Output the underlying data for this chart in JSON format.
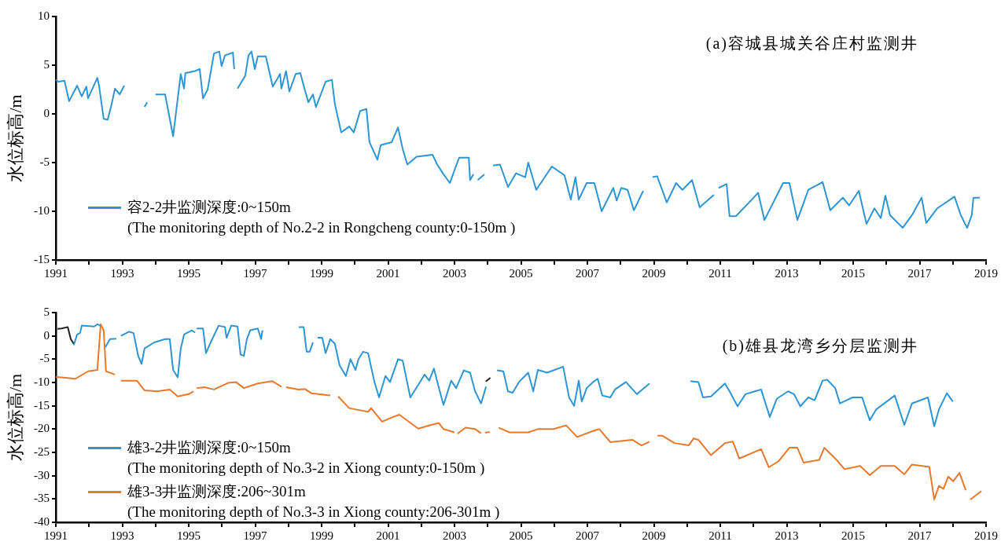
{
  "chart_data": [
    {
      "type": "line",
      "title": "(a)容城县城关谷庄村监测井",
      "ylabel": "水位标高/m",
      "xlim": [
        1991,
        2019
      ],
      "xticks": [
        1991,
        {
          "value": 1992,
          "label": null
        },
        1993,
        {
          "value": 1994,
          "label": null
        },
        1995,
        {
          "value": 1996,
          "label": null
        },
        1997,
        {
          "value": 1998,
          "label": null
        },
        1999,
        {
          "value": 2000,
          "label": null
        },
        2001,
        {
          "value": 2002,
          "label": null
        },
        2003,
        {
          "value": 2004,
          "label": null
        },
        2005,
        {
          "value": 2006,
          "label": null
        },
        2007,
        {
          "value": 2008,
          "label": null
        },
        2009,
        {
          "value": 2010,
          "label": null
        },
        2011,
        {
          "value": 2012,
          "label": null
        },
        2013,
        {
          "value": 2014,
          "label": null
        },
        2015,
        {
          "value": 2016,
          "label": null
        },
        2017,
        {
          "value": 2018,
          "label": null
        },
        2019
      ],
      "ylim": [
        -15,
        10
      ],
      "yticks": [
        -15,
        -10,
        -5,
        0,
        5,
        10
      ],
      "grid": false,
      "legend": "bottom left",
      "marker": "none",
      "series": [
        {
          "name": "容2-2井监测深度:0~150m\n(The monitoring depth of No.2-2 in Rongcheng county:0-150m )",
          "color": "#2e95d3",
          "x": [
            1991.0,
            1991.07,
            1991.26,
            1991.4,
            1991.64,
            1991.78,
            1991.92,
            1991.97,
            1992.25,
            1992.3,
            1992.44,
            1992.56,
            1992.68,
            1992.78,
            1992.92,
            1993.06,
            1993.4,
            1993.67,
            1993.75,
            1993.9,
            1994.0,
            1994.29,
            1994.53,
            1994.76,
            1994.86,
            1994.9,
            1995.19,
            1995.33,
            1995.43,
            1995.57,
            1995.76,
            1995.92,
            1995.99,
            1996.09,
            1996.33,
            1996.37,
            1996.42,
            1996.47,
            1996.7,
            1996.8,
            1996.89,
            1996.99,
            1997.08,
            1997.32,
            1997.53,
            1997.75,
            1997.79,
            1997.93,
            1998.03,
            1998.22,
            1998.36,
            1998.46,
            1998.6,
            1998.74,
            1998.83,
            1999.12,
            1999.31,
            1999.4,
            1999.59,
            1999.83,
            1999.97,
            2000.16,
            2000.35,
            2000.44,
            2000.68,
            2000.78,
            2001.11,
            2001.3,
            2001.44,
            2001.58,
            2001.86,
            2002.34,
            2002.48,
            2002.67,
            2002.86,
            2003.05,
            2003.14,
            2003.43,
            2003.47,
            2003.57,
            2003.63,
            2003.7,
            2003.9,
            2004.03,
            2004.16,
            2004.37,
            2004.61,
            2004.85,
            2005.13,
            2005.22,
            2005.46,
            2005.93,
            2006.31,
            2006.5,
            2006.64,
            2006.74,
            2006.98,
            2007.21,
            2007.43,
            2007.78,
            2007.88,
            2008.02,
            2008.21,
            2008.4,
            2008.68,
            2008.82,
            2008.96,
            2009.1,
            2009.39,
            2009.67,
            2009.86,
            2010.15,
            2010.38,
            2010.81,
            2010.88,
            2010.95,
            2011.19,
            2011.28,
            2011.47,
            2011.95,
            2012.14,
            2012.33,
            2012.89,
            2013.08,
            2013.32,
            2013.65,
            2014.08,
            2014.31,
            2014.69,
            2014.88,
            2015.17,
            2015.4,
            2015.64,
            2015.83,
            2015.97,
            2016.11,
            2016.49,
            2016.77,
            2017.06,
            2017.2,
            2017.53,
            2018.05,
            2018.24,
            2018.43,
            2018.57,
            2018.62,
            2018.81
          ],
          "values": [
            3.5,
            3.3,
            3.4,
            1.3,
            2.9,
            1.8,
            2.8,
            1.6,
            3.7,
            2.9,
            -0.5,
            -0.6,
            1.0,
            2.6,
            2.0,
            2.9,
            null,
            0.7,
            1.2,
            null,
            2.0,
            2.0,
            -2.3,
            4.1,
            2.6,
            4.2,
            4.4,
            4.6,
            1.6,
            2.5,
            6.2,
            6.4,
            4.9,
            6.0,
            6.3,
            4.6,
            null,
            2.6,
            3.9,
            6.0,
            6.4,
            4.6,
            5.9,
            5.9,
            2.8,
            4.1,
            2.6,
            4.4,
            2.3,
            4.1,
            4.2,
            2.9,
            1.2,
            2.0,
            0.7,
            3.3,
            3.5,
            1.0,
            -1.9,
            -1.3,
            -1.9,
            0.3,
            0.5,
            -2.9,
            -4.7,
            -3.2,
            -2.9,
            -1.4,
            -3.6,
            -5.2,
            -4.4,
            -4.2,
            -5.2,
            -6.2,
            -7.1,
            -5.3,
            -4.5,
            -4.5,
            -6.8,
            -6.2,
            null,
            -6.8,
            -6.2,
            null,
            -5.3,
            -5.2,
            -7.5,
            -6.1,
            -6.5,
            -5.0,
            -7.8,
            -5.4,
            -6.3,
            -8.8,
            -6.5,
            -8.8,
            -7.1,
            -7.1,
            -10.0,
            -7.6,
            -8.9,
            -7.6,
            -7.8,
            -9.9,
            -7.9,
            null,
            -6.5,
            -6.4,
            -9.1,
            -7.1,
            -7.8,
            -6.8,
            -9.6,
            -8.3,
            null,
            -7.6,
            -7.2,
            -10.5,
            -10.5,
            -8.8,
            -8.1,
            -10.9,
            -7.1,
            -7.1,
            -10.9,
            -7.8,
            -7.0,
            -9.9,
            -8.6,
            -9.4,
            -7.9,
            -11.3,
            -9.7,
            -10.7,
            -8.4,
            -10.4,
            -11.7,
            -10.4,
            -8.6,
            -11.2,
            -9.7,
            -8.5,
            -10.4,
            -11.7,
            -10.4,
            -8.6,
            -8.6
          ]
        }
      ]
    },
    {
      "type": "line",
      "title": "(b)雄县龙湾乡分层监测井",
      "ylabel": "水位标高/m",
      "xlim": [
        1991,
        2019
      ],
      "xticks": [
        1991,
        {
          "value": 1992,
          "label": null
        },
        1993,
        {
          "value": 1994,
          "label": null
        },
        1995,
        {
          "value": 1996,
          "label": null
        },
        1997,
        {
          "value": 1998,
          "label": null
        },
        1999,
        {
          "value": 2000,
          "label": null
        },
        2001,
        {
          "value": 2002,
          "label": null
        },
        2003,
        {
          "value": 2004,
          "label": null
        },
        2005,
        {
          "value": 2006,
          "label": null
        },
        2007,
        {
          "value": 2008,
          "label": null
        },
        2009,
        {
          "value": 2010,
          "label": null
        },
        2011,
        {
          "value": 2012,
          "label": null
        },
        2013,
        {
          "value": 2014,
          "label": null
        },
        2015,
        {
          "value": 2016,
          "label": null
        },
        2017,
        {
          "value": 2018,
          "label": null
        },
        2019
      ],
      "ylim": [
        -40,
        5
      ],
      "yticks": [
        -40,
        -35,
        -30,
        -25,
        -20,
        -15,
        -10,
        -5,
        0,
        5
      ],
      "grid": false,
      "legend": "bottom left",
      "marker": "none",
      "series": [
        {
          "name": "雄3-2井监测深度:0~150m\n(The monitoring depth of No.3-2 in Xiong county:0-150m )",
          "color": "#2e95d3",
          "x": [
            1991.54,
            1991.64,
            1991.73,
            1991.78,
            1992.16,
            1992.25,
            1992.35,
            1992.42,
            1992.49,
            1992.63,
            1992.82,
            1992.89,
            1992.96,
            1993.2,
            1993.34,
            1993.48,
            1993.58,
            1993.67,
            1993.96,
            1994.29,
            1994.43,
            1994.53,
            1994.67,
            1994.76,
            1994.86,
            1995.09,
            1995.19,
            1995.21,
            1995.24,
            1995.43,
            1995.52,
            1995.66,
            1995.9,
            1996.09,
            1996.14,
            1996.28,
            1996.47,
            1996.56,
            1996.66,
            1996.75,
            1996.85,
            1997.08,
            1997.18,
            1997.22,
            1997.8,
            1998.31,
            1998.46,
            1998.55,
            1998.64,
            1998.74,
            1998.81,
            1998.88,
            1999.02,
            1999.12,
            1999.26,
            1999.4,
            1999.54,
            1999.73,
            1999.87,
            2000.02,
            2000.11,
            2000.25,
            2000.4,
            2000.59,
            2000.73,
            2000.92,
            2001.06,
            2001.3,
            2001.44,
            2001.67,
            2001.91,
            2002.1,
            2002.24,
            2002.38,
            2002.53,
            2002.67,
            2002.9,
            2003.05,
            2003.28,
            2003.47,
            2003.62,
            2003.8,
            2003.95,
            2004.1,
            2004.28,
            2004.47,
            2004.61,
            2004.75,
            2004.94,
            2005.22,
            2005.37,
            2005.51,
            2005.79,
            2006.27,
            2006.45,
            2006.6,
            2006.74,
            2006.83,
            2006.98,
            2007.17,
            2007.31,
            2007.45,
            2007.69,
            2007.83,
            2008.16,
            2008.49,
            2008.87,
            2009.5,
            2010.1,
            2010.34,
            2010.48,
            2010.72,
            2011.14,
            2011.28,
            2011.52,
            2011.76,
            2012.04,
            2012.23,
            2012.49,
            2012.7,
            2013.04,
            2013.22,
            2013.41,
            2013.65,
            2013.84,
            2014.08,
            2014.22,
            2014.46,
            2014.6,
            2014.98,
            2015.27,
            2015.5,
            2015.69,
            2016.25,
            2016.54,
            2016.77,
            2017.25,
            2017.44,
            2017.58,
            2017.82,
            2018.0
          ],
          "values": [
            -2.0,
            0.3,
            0.6,
            2.2,
            2.0,
            2.5,
            2.2,
            null,
            -2.4,
            -0.7,
            -0.6,
            null,
            0,
            0.9,
            0.6,
            -4.3,
            -6.0,
            -2.7,
            -1.4,
            -0.7,
            -0.7,
            -7.3,
            -8.9,
            -2.7,
            0.3,
            1.2,
            0.7,
            null,
            1.6,
            1.6,
            -3.7,
            -1.4,
            2.2,
            1.9,
            -0.4,
            2.2,
            2.0,
            -4.0,
            -4.3,
            -0.7,
            1.2,
            1.6,
            -0.7,
            1.2,
            null,
            1.9,
            1.9,
            -3.4,
            -3.4,
            -1.4,
            null,
            -0.4,
            -0.4,
            -3.7,
            -0.7,
            -1.7,
            -6.3,
            -8.6,
            -5.0,
            -7.3,
            -5.0,
            -3.4,
            -3.7,
            -9.9,
            -13.2,
            -8.6,
            -9.9,
            -5.0,
            -5.3,
            -13.2,
            -10.5,
            -8.3,
            -9.6,
            -7.0,
            -11.2,
            -14.8,
            -9.6,
            -11.2,
            -7.4,
            -7.9,
            -11.9,
            -14.5,
            -10.9,
            null,
            -7.4,
            -7.6,
            -11.9,
            -12.2,
            -9.9,
            -7.9,
            -11.9,
            -7.3,
            -7.9,
            -6.6,
            -13.2,
            -15.0,
            -9.6,
            -14.1,
            -11.2,
            -9.9,
            -9.2,
            -12.8,
            -13.2,
            -11.5,
            -9.9,
            -12.5,
            -10.2,
            null,
            -9.7,
            -9.9,
            -13.2,
            -13.0,
            -10.2,
            -11.9,
            -15.1,
            -12.5,
            -11.9,
            -11.5,
            -17.4,
            -13.5,
            -11.9,
            -12.5,
            -15.1,
            -13.2,
            -13.8,
            -9.6,
            -9.4,
            -11.2,
            -14.5,
            -13.2,
            -13.2,
            -18.1,
            -15.8,
            -12.8,
            -19.1,
            -14.5,
            -13.2,
            -19.4,
            -15.8,
            -12.3,
            -14.1
          ]
        },
        {
          "name": "雄3-3井监测深度:206~301m\n(The monitoring depth of No.3-3 in Xiong county:206-301m )",
          "color": "#e8792b",
          "x": [
            1991.0,
            1991.17,
            1991.59,
            1991.97,
            1992.25,
            1992.35,
            1992.44,
            1992.51,
            1992.78,
            1992.87,
            1992.96,
            1993.44,
            1993.67,
            1994.05,
            1994.43,
            1994.67,
            1995.0,
            1995.14,
            1995.19,
            1995.24,
            1995.47,
            1995.76,
            1996.18,
            1996.42,
            1996.66,
            1997.08,
            1997.51,
            1997.79,
            1997.86,
            1997.93,
            1998.31,
            1998.5,
            1998.69,
            1999.26,
            1999.38,
            1999.5,
            1999.83,
            2000.4,
            2000.49,
            2000.82,
            2001.15,
            2001.34,
            2001.91,
            2002.29,
            2002.53,
            2002.67,
            2003.0,
            2003.05,
            2003.09,
            2003.33,
            2003.62,
            2003.8,
            2003.88,
            2003.92,
            2004.06,
            2004.2,
            2004.33,
            2004.66,
            2005.22,
            2005.51,
            2005.98,
            2006.36,
            2006.69,
            2007.17,
            2007.36,
            2007.69,
            2008.35,
            2008.63,
            2008.87,
            2009.0,
            2009.11,
            2009.25,
            2009.62,
            2010.05,
            2010.2,
            2010.34,
            2010.72,
            2011.14,
            2011.38,
            2011.57,
            2012.23,
            2012.46,
            2012.75,
            2013.08,
            2013.32,
            2013.51,
            2013.98,
            2014.13,
            2014.5,
            2014.74,
            2015.21,
            2015.5,
            2015.83,
            2016.25,
            2016.54,
            2016.77,
            2017.29,
            2017.44,
            2017.58,
            2017.72,
            2017.86,
            2018.01,
            2018.2,
            2018.39,
            2018.46,
            2018.53,
            2018.86
          ],
          "values": [
            -8.8,
            -8.9,
            -9.2,
            -7.6,
            -7.3,
            2.5,
            1.2,
            -7.6,
            -8.3,
            null,
            -9.6,
            -9.6,
            -11.7,
            -11.9,
            -11.5,
            -13.0,
            -12.5,
            -11.9,
            null,
            -11.2,
            -11.0,
            -11.5,
            -10.1,
            -9.9,
            -11.2,
            -10.2,
            -9.7,
            -10.9,
            null,
            -11.0,
            -11.5,
            -11.4,
            -12.3,
            -12.8,
            null,
            -13.0,
            -15.5,
            -16.3,
            -15.5,
            -18.4,
            -17.4,
            -16.9,
            -19.9,
            -19.1,
            -18.7,
            -20.0,
            -20.7,
            null,
            -21.0,
            -19.7,
            -20.0,
            -20.9,
            null,
            -20.8,
            -20.6,
            null,
            -19.7,
            -20.7,
            -20.7,
            -20.0,
            -20.0,
            -19.2,
            -21.7,
            -20.4,
            -20.0,
            -22.8,
            -22.3,
            -23.5,
            -22.7,
            null,
            -21.4,
            -21.4,
            -23.0,
            -23.5,
            -22.0,
            -22.3,
            -25.6,
            -23.0,
            -22.7,
            -26.3,
            -24.3,
            -28.2,
            -26.9,
            -24.0,
            -24.0,
            -27.2,
            -26.6,
            -24.0,
            -26.6,
            -28.6,
            -27.9,
            -29.9,
            -27.9,
            -27.9,
            -29.7,
            -27.6,
            -28.1,
            -35.1,
            -32.2,
            -32.8,
            -30.2,
            -31.2,
            -29.4,
            -33.1,
            null,
            -35.1,
            -33.3
          ]
        },
        {
          "color": "#231f20",
          "x": [
            1991.05,
            1991.17,
            1991.36,
            1991.45,
            1991.54,
            1991.8,
            2003.94,
            2004.08
          ],
          "values": [
            1.5,
            1.6,
            1.9,
            -0.7,
            -1.7,
            null,
            -9.8,
            -9.0
          ]
        }
      ]
    }
  ]
}
